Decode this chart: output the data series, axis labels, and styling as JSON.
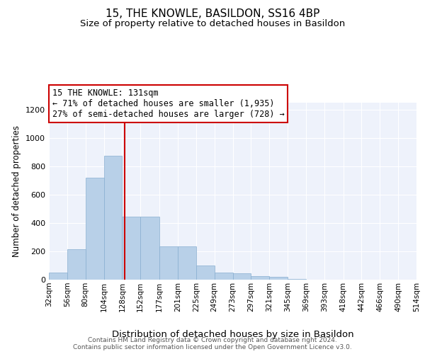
{
  "title": "15, THE KNOWLE, BASILDON, SS16 4BP",
  "subtitle": "Size of property relative to detached houses in Basildon",
  "xlabel": "Distribution of detached houses by size in Basildon",
  "ylabel": "Number of detached properties",
  "bar_color": "#b8d0e8",
  "bar_edge_color": "#88aed0",
  "background_color": "#eef2fb",
  "grid_color": "#ffffff",
  "bin_edges": [
    32,
    56,
    80,
    104,
    128,
    152,
    177,
    201,
    225,
    249,
    273,
    297,
    321,
    345,
    369,
    393,
    418,
    442,
    466,
    490,
    514
  ],
  "bar_heights": [
    50,
    215,
    720,
    875,
    445,
    445,
    235,
    235,
    100,
    50,
    45,
    25,
    20,
    5,
    2,
    1,
    0,
    0,
    0,
    0
  ],
  "property_size": 131,
  "red_line_color": "#cc0000",
  "annotation_text_line1": "15 THE KNOWLE: 131sqm",
  "annotation_text_line2": "← 71% of detached houses are smaller (1,935)",
  "annotation_text_line3": "27% of semi-detached houses are larger (728) →",
  "tick_labels": [
    "32sqm",
    "56sqm",
    "80sqm",
    "104sqm",
    "128sqm",
    "152sqm",
    "177sqm",
    "201sqm",
    "225sqm",
    "249sqm",
    "273sqm",
    "297sqm",
    "321sqm",
    "345sqm",
    "369sqm",
    "393sqm",
    "418sqm",
    "442sqm",
    "466sqm",
    "490sqm",
    "514sqm"
  ],
  "ylim": [
    0,
    1250
  ],
  "yticks": [
    0,
    200,
    400,
    600,
    800,
    1000,
    1200
  ],
  "footer_text": "Contains HM Land Registry data © Crown copyright and database right 2024.\nContains public sector information licensed under the Open Government Licence v3.0.",
  "title_fontsize": 11,
  "subtitle_fontsize": 9.5,
  "xlabel_fontsize": 9.5,
  "ylabel_fontsize": 8.5,
  "tick_fontsize": 7.5,
  "footer_fontsize": 6.5,
  "annot_fontsize": 8.5
}
